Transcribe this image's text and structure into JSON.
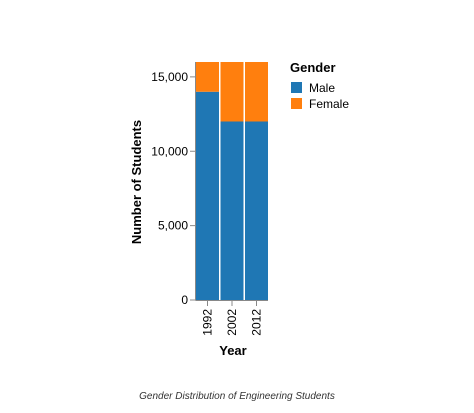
{
  "chart_data": {
    "type": "bar",
    "stacked": true,
    "categories": [
      "1992",
      "2002",
      "2012"
    ],
    "series": [
      {
        "name": "Male",
        "values": [
          14000,
          12000,
          12000
        ],
        "color": "#1f77b4"
      },
      {
        "name": "Female",
        "values": [
          2000,
          4000,
          4000
        ],
        "color": "#ff7f0e"
      }
    ],
    "xlabel": "Year",
    "ylabel": "Number of Students",
    "ylim": [
      0,
      16000
    ],
    "yticks": [
      0,
      5000,
      10000,
      15000
    ],
    "ytick_labels": [
      "0",
      "5,000",
      "10,000",
      "15,000"
    ],
    "legend": {
      "title": "Gender",
      "position": "right"
    },
    "grid": false
  },
  "caption": "Gender Distribution of Engineering Students"
}
